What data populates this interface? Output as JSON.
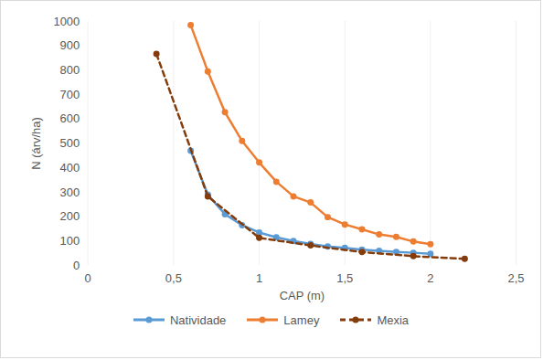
{
  "chart_data": {
    "type": "line",
    "x_label": "CAP (m)",
    "y_label": "N (árv/ha)",
    "xlim": [
      0,
      2.5
    ],
    "xticks": [
      0,
      {
        "value": 0.5,
        "label": "0,5"
      },
      1,
      {
        "value": 1.5,
        "label": "1,5"
      },
      2,
      {
        "value": 2.5,
        "label": "2,5"
      }
    ],
    "ylim": [
      0,
      1000
    ],
    "yticks": [
      0,
      100,
      200,
      300,
      400,
      500,
      600,
      700,
      800,
      900,
      1000
    ],
    "grid": "x",
    "legend": "bottom",
    "series": [
      {
        "name": "Natividade",
        "color": "#5b9bd5",
        "marker": "circle",
        "line_style": "solid",
        "x": [
          0.6,
          0.7,
          0.8,
          0.9,
          1.0,
          1.1,
          1.2,
          1.3,
          1.4,
          1.5,
          1.6,
          1.7,
          1.8,
          1.9,
          2.0
        ],
        "values": [
          470,
          290,
          210,
          165,
          135,
          115,
          100,
          88,
          78,
          72,
          65,
          60,
          55,
          52,
          48
        ]
      },
      {
        "name": "Lamey",
        "color": "#ed7d31",
        "marker": "circle",
        "line_style": "solid",
        "x": [
          0.6,
          0.7,
          0.8,
          0.9,
          1.0,
          1.1,
          1.2,
          1.3,
          1.4,
          1.5,
          1.6,
          1.7,
          1.8,
          1.9,
          2.0
        ],
        "values": [
          985,
          795,
          628,
          510,
          422,
          343,
          283,
          258,
          198,
          168,
          148,
          127,
          117,
          98,
          87
        ]
      },
      {
        "name": "Mexia",
        "color": "#843c0c",
        "marker": "circle",
        "line_style": "dashed",
        "x": [
          0.4,
          0.7,
          1.0,
          1.3,
          1.6,
          1.9,
          2.2
        ],
        "values": [
          867,
          283,
          113,
          82,
          55,
          38,
          27
        ]
      }
    ]
  }
}
